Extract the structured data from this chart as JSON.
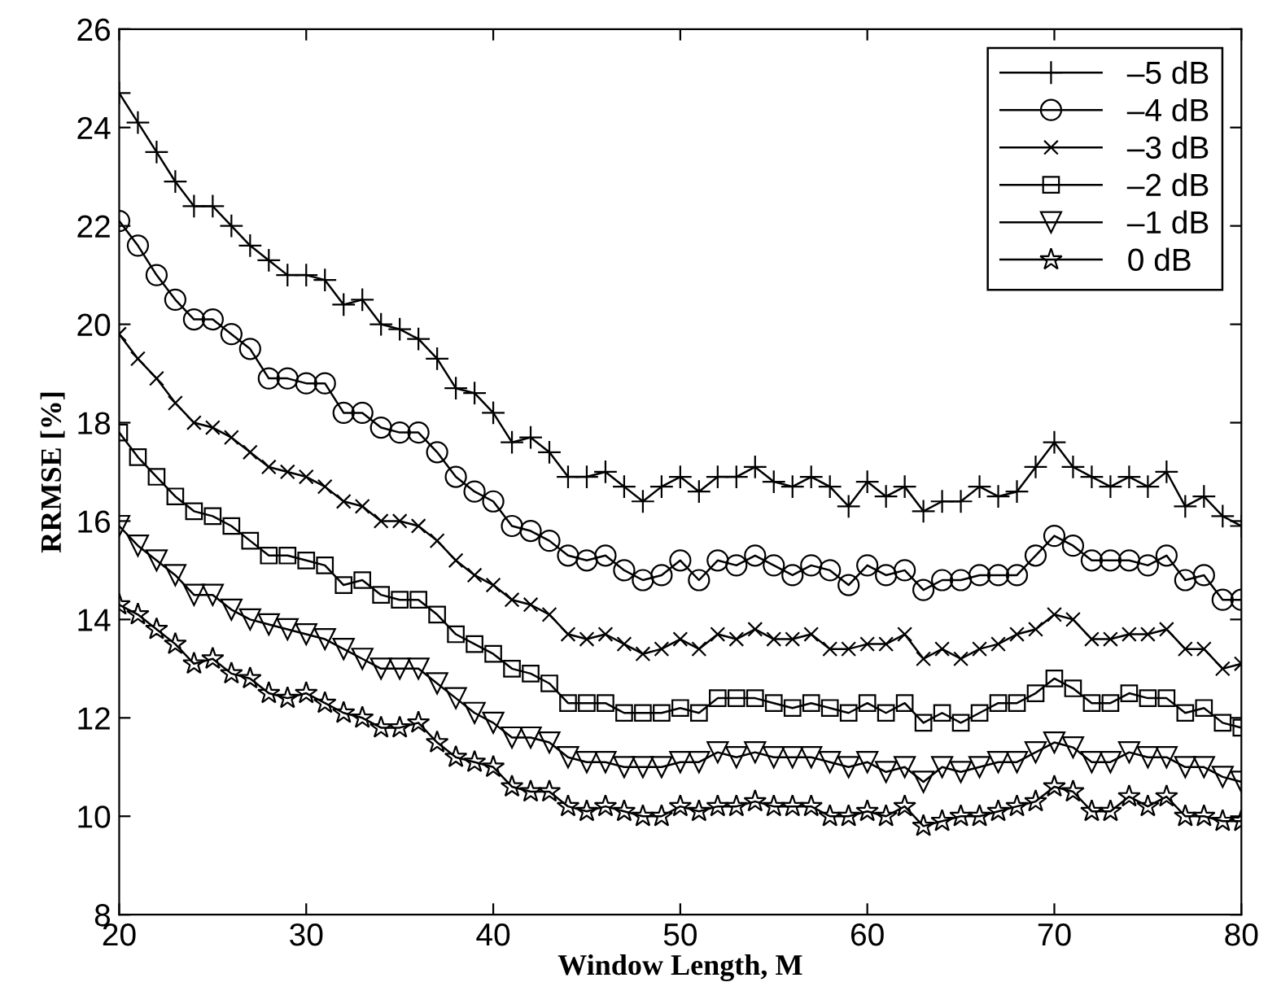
{
  "chart_data": {
    "type": "line",
    "xlabel": "Window Length, M",
    "ylabel": "RRMSE [%]",
    "x": [
      20,
      21,
      22,
      23,
      24,
      25,
      26,
      27,
      28,
      29,
      30,
      31,
      32,
      33,
      34,
      35,
      36,
      37,
      38,
      39,
      40,
      41,
      42,
      43,
      44,
      45,
      46,
      47,
      48,
      49,
      50,
      51,
      52,
      53,
      54,
      55,
      56,
      57,
      58,
      59,
      60,
      61,
      62,
      63,
      64,
      65,
      66,
      67,
      68,
      69,
      70,
      71,
      72,
      73,
      74,
      75,
      76,
      77,
      78,
      79,
      80
    ],
    "xlim": [
      20,
      80
    ],
    "xticks": [
      20,
      30,
      40,
      50,
      60,
      70,
      80
    ],
    "ylim": [
      8,
      26
    ],
    "yticks": [
      8,
      10,
      12,
      14,
      16,
      18,
      20,
      22,
      24,
      26
    ],
    "grid": false,
    "legend": "top right",
    "series": [
      {
        "name": "–5 dB",
        "color": "#000000",
        "marker": "plus",
        "values": [
          24.7,
          24.1,
          23.5,
          22.9,
          22.4,
          22.4,
          22.0,
          21.6,
          21.3,
          21.0,
          21.0,
          20.9,
          20.4,
          20.5,
          20.0,
          19.9,
          19.7,
          19.3,
          18.7,
          18.6,
          18.2,
          17.6,
          17.7,
          17.4,
          16.9,
          16.9,
          17.0,
          16.7,
          16.4,
          16.7,
          16.9,
          16.6,
          16.9,
          16.9,
          17.1,
          16.8,
          16.7,
          16.9,
          16.7,
          16.3,
          16.8,
          16.5,
          16.7,
          16.2,
          16.4,
          16.4,
          16.7,
          16.5,
          16.6,
          17.1,
          17.6,
          17.1,
          16.9,
          16.7,
          16.9,
          16.7,
          17.0,
          16.3,
          16.5,
          16.1,
          15.9
        ]
      },
      {
        "name": "–4 dB",
        "color": "#000000",
        "marker": "circle",
        "values": [
          22.1,
          21.6,
          21.0,
          20.5,
          20.1,
          20.1,
          19.8,
          19.5,
          18.9,
          18.9,
          18.8,
          18.8,
          18.2,
          18.2,
          17.9,
          17.8,
          17.8,
          17.4,
          16.9,
          16.6,
          16.4,
          15.9,
          15.8,
          15.6,
          15.3,
          15.2,
          15.3,
          15.0,
          14.8,
          14.9,
          15.2,
          14.8,
          15.2,
          15.1,
          15.3,
          15.1,
          14.9,
          15.1,
          15.0,
          14.7,
          15.1,
          14.9,
          15.0,
          14.6,
          14.8,
          14.8,
          14.9,
          14.9,
          14.9,
          15.3,
          15.7,
          15.5,
          15.2,
          15.2,
          15.2,
          15.1,
          15.3,
          14.8,
          14.9,
          14.4,
          14.4
        ]
      },
      {
        "name": "–3 dB",
        "color": "#000000",
        "marker": "x",
        "values": [
          19.8,
          19.3,
          18.9,
          18.4,
          18.0,
          17.9,
          17.7,
          17.4,
          17.1,
          17.0,
          16.9,
          16.7,
          16.4,
          16.3,
          16.0,
          16.0,
          15.9,
          15.6,
          15.2,
          14.9,
          14.7,
          14.4,
          14.3,
          14.1,
          13.7,
          13.6,
          13.7,
          13.5,
          13.3,
          13.4,
          13.6,
          13.4,
          13.7,
          13.6,
          13.8,
          13.6,
          13.6,
          13.7,
          13.4,
          13.4,
          13.5,
          13.5,
          13.7,
          13.2,
          13.4,
          13.2,
          13.4,
          13.5,
          13.7,
          13.8,
          14.1,
          14.0,
          13.6,
          13.6,
          13.7,
          13.7,
          13.8,
          13.4,
          13.4,
          13.0,
          13.1
        ]
      },
      {
        "name": "–2 dB",
        "color": "#000000",
        "marker": "square",
        "values": [
          17.8,
          17.3,
          16.9,
          16.5,
          16.2,
          16.1,
          15.9,
          15.6,
          15.3,
          15.3,
          15.2,
          15.1,
          14.7,
          14.8,
          14.5,
          14.4,
          14.4,
          14.1,
          13.7,
          13.5,
          13.3,
          13.0,
          12.9,
          12.7,
          12.3,
          12.3,
          12.3,
          12.1,
          12.1,
          12.1,
          12.2,
          12.1,
          12.4,
          12.4,
          12.4,
          12.3,
          12.2,
          12.3,
          12.2,
          12.1,
          12.3,
          12.1,
          12.3,
          11.9,
          12.1,
          11.9,
          12.1,
          12.3,
          12.3,
          12.5,
          12.8,
          12.6,
          12.3,
          12.3,
          12.5,
          12.4,
          12.4,
          12.1,
          12.2,
          11.9,
          11.8
        ]
      },
      {
        "name": "–1 dB",
        "color": "#000000",
        "marker": "triangle_down",
        "values": [
          15.9,
          15.5,
          15.2,
          14.9,
          14.5,
          14.5,
          14.2,
          14.0,
          13.9,
          13.8,
          13.7,
          13.6,
          13.4,
          13.2,
          13.0,
          13.0,
          13.0,
          12.7,
          12.4,
          12.1,
          11.9,
          11.6,
          11.6,
          11.5,
          11.2,
          11.1,
          11.1,
          11.0,
          11.0,
          11.0,
          11.1,
          11.1,
          11.3,
          11.2,
          11.3,
          11.2,
          11.2,
          11.2,
          11.1,
          11.0,
          11.1,
          10.9,
          11.0,
          10.7,
          11.0,
          10.9,
          11.0,
          11.1,
          11.1,
          11.3,
          11.5,
          11.4,
          11.1,
          11.1,
          11.3,
          11.2,
          11.2,
          11.0,
          11.0,
          10.8,
          10.7
        ]
      },
      {
        "name": "0 dB",
        "color": "#000000",
        "marker": "star",
        "values": [
          14.3,
          14.1,
          13.8,
          13.5,
          13.1,
          13.2,
          12.9,
          12.8,
          12.5,
          12.4,
          12.5,
          12.3,
          12.1,
          12.0,
          11.8,
          11.8,
          11.9,
          11.5,
          11.2,
          11.1,
          11.0,
          10.6,
          10.5,
          10.5,
          10.2,
          10.1,
          10.2,
          10.1,
          10.0,
          10.0,
          10.2,
          10.1,
          10.2,
          10.2,
          10.3,
          10.2,
          10.2,
          10.2,
          10.0,
          10.0,
          10.1,
          10.0,
          10.2,
          9.8,
          9.9,
          10.0,
          10.0,
          10.1,
          10.2,
          10.3,
          10.6,
          10.5,
          10.1,
          10.1,
          10.4,
          10.2,
          10.4,
          10.0,
          10.0,
          9.9,
          9.9
        ]
      }
    ]
  }
}
